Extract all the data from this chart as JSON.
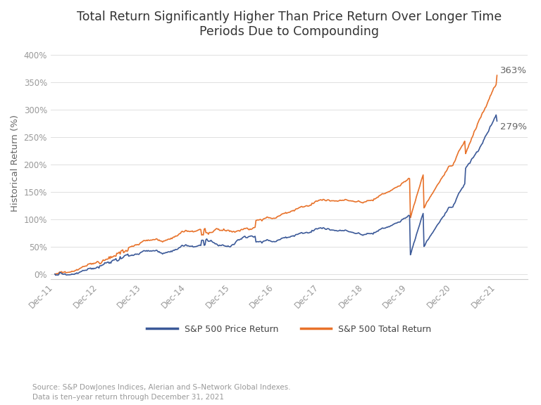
{
  "title": "Total Return Significantly Higher Than Price Return Over Longer Time\nPeriods Due to Compounding",
  "ylabel": "Historical Return (%)",
  "source_text": "Source: S&P DowJones Indices, Alerian and S–Network Global Indexes.\nData is ten–year return through December 31, 2021",
  "legend_labels": [
    "S&P 500 Price Return",
    "S&P 500 Total Return"
  ],
  "price_color": "#3B5998",
  "total_color": "#E8722A",
  "final_price_pct": 279,
  "final_total_pct": 363,
  "x_labels": [
    "Dec-11",
    "Dec-12",
    "Dec-13",
    "Dec-14",
    "Dec-15",
    "Dec-16",
    "Dec-17",
    "Dec-18",
    "Dec-19",
    "Dec-20",
    "Dec-21"
  ],
  "ylim": [
    -10,
    415
  ],
  "yticks": [
    0,
    50,
    100,
    150,
    200,
    250,
    300,
    350,
    400
  ],
  "background_color": "#ffffff",
  "title_fontsize": 12.5,
  "axis_label_fontsize": 9.5,
  "tick_fontsize": 8.5,
  "annotation_fontsize": 9.5,
  "legend_fontsize": 9,
  "source_fontsize": 7.5
}
